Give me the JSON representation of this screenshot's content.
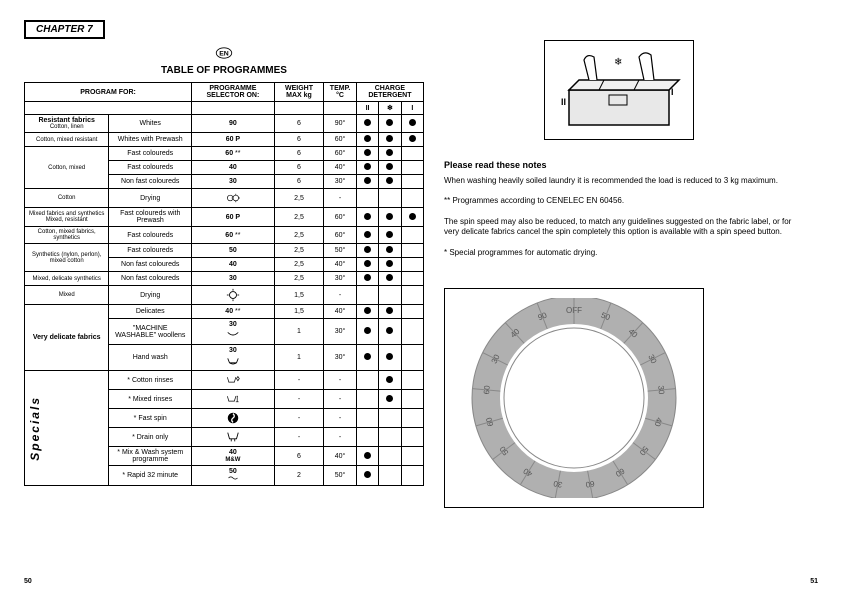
{
  "chapter": "CHAPTER 7",
  "title": "TABLE OF PROGRAMMES",
  "headers": {
    "program_for": "PROGRAM FOR:",
    "selector": "PROGRAMME SELECTOR ON:",
    "weight": "WEIGHT MAX kg",
    "temp": "TEMP. °C",
    "detergent": "CHARGE DETERGENT",
    "col_ii": "II",
    "col_snow": "❄",
    "col_i": "I"
  },
  "categories": {
    "resistant": "Resistant fabrics",
    "resistant_sub": "Cotton, linen",
    "cotton_mixed_res": "Cotton, mixed resistant",
    "cotton_mixed": "Cotton, mixed",
    "cotton": "Cotton",
    "mixed_res": "Mixed fabrics and synthetics Mixed, resistant",
    "cotton_mixed_syn": "Cotton, mixed fabrics, synthetics",
    "synthetics": "Synthetics (nylon, perlon), mixed cotton",
    "mixed_delicate": "Mixed, delicate synthetics",
    "mixed": "Mixed",
    "very_delicate": "Very delicate fabrics",
    "specials": "Specials"
  },
  "rows": [
    {
      "desc": "Whites",
      "sel": "90",
      "w": "6",
      "t": "90°",
      "d2": "●",
      "ds": "●",
      "d1": "●"
    },
    {
      "desc": "Whites with Prewash",
      "sel": "60 P",
      "w": "6",
      "t": "60°",
      "d2": "●",
      "ds": "●",
      "d1": "●"
    },
    {
      "desc": "Fast coloureds",
      "sel": "60",
      "note": "**",
      "w": "6",
      "t": "60°",
      "d2": "●",
      "ds": "●",
      "d1": ""
    },
    {
      "desc": "Fast coloureds",
      "sel": "40",
      "w": "6",
      "t": "40°",
      "d2": "●",
      "ds": "●",
      "d1": ""
    },
    {
      "desc": "Non fast coloureds",
      "sel": "30",
      "w": "6",
      "t": "30°",
      "d2": "●",
      "ds": "●",
      "d1": ""
    },
    {
      "desc": "Drying",
      "sel": "sym-sun",
      "w": "2,5",
      "t": "-",
      "d2": "",
      "ds": "",
      "d1": ""
    },
    {
      "desc": "Fast coloureds with Prewash",
      "sel": "60 P",
      "w": "2,5",
      "t": "60°",
      "d2": "●",
      "ds": "●",
      "d1": "●"
    },
    {
      "desc": "Fast coloureds",
      "sel": "60",
      "note": "**",
      "w": "2,5",
      "t": "60°",
      "d2": "●",
      "ds": "●",
      "d1": ""
    },
    {
      "desc": "Fast coloureds",
      "sel": "50",
      "w": "2,5",
      "t": "50°",
      "d2": "●",
      "ds": "●",
      "d1": ""
    },
    {
      "desc": "Non fast coloureds",
      "sel": "40",
      "w": "2,5",
      "t": "40°",
      "d2": "●",
      "ds": "●",
      "d1": ""
    },
    {
      "desc": "Non fast coloureds",
      "sel": "30",
      "w": "2,5",
      "t": "30°",
      "d2": "●",
      "ds": "●",
      "d1": ""
    },
    {
      "desc": "Drying",
      "sel": "sym-sun",
      "w": "1,5",
      "t": "-",
      "d2": "",
      "ds": "",
      "d1": ""
    },
    {
      "desc": "Delicates",
      "sel": "40",
      "note": "**",
      "w": "1,5",
      "t": "40°",
      "d2": "●",
      "ds": "●",
      "d1": ""
    },
    {
      "desc": "\"MACHINE WASHABLE\" woollens",
      "sel": "30 wool",
      "w": "1",
      "t": "30°",
      "d2": "●",
      "ds": "●",
      "d1": ""
    },
    {
      "desc": "Hand wash",
      "sel": "30 hand",
      "w": "1",
      "t": "30°",
      "d2": "●",
      "ds": "●",
      "d1": ""
    },
    {
      "desc": "Cotton rinses",
      "star": "*",
      "sel": "sym-rinse",
      "w": "-",
      "t": "-",
      "d2": "",
      "ds": "●",
      "d1": ""
    },
    {
      "desc": "Mixed rinses",
      "star": "*",
      "sel": "sym-rinse2",
      "w": "-",
      "t": "-",
      "d2": "",
      "ds": "●",
      "d1": ""
    },
    {
      "desc": "Fast spin",
      "star": "*",
      "sel": "sym-spin",
      "w": "-",
      "t": "-",
      "d2": "",
      "ds": "",
      "d1": ""
    },
    {
      "desc": "Drain only",
      "star": "*",
      "sel": "sym-drain",
      "w": "-",
      "t": "-",
      "d2": "",
      "ds": "",
      "d1": ""
    },
    {
      "desc": "Mix & Wash system programme",
      "star": "*",
      "sel": "40 MW",
      "w": "6",
      "t": "40°",
      "d2": "●",
      "ds": "",
      "d1": ""
    },
    {
      "desc": "Rapid 32 minute",
      "star": "*",
      "sel": "50 rapid",
      "w": "2",
      "t": "50°",
      "d2": "●",
      "ds": "",
      "d1": ""
    }
  ],
  "notes": {
    "title": "Please read these notes",
    "n1": "When washing heavily soiled laundry it is recommended the load is reduced to 3 kg maximum.",
    "n2": "** Programmes according to CENELEC EN 60456.",
    "n3": "The spin speed may also be reduced, to match any guidelines suggested on the fabric label, or for very delicate fabrics cancel the spin completely this option is available with a spin speed button.",
    "n4": "* Special programmes for automatic drying."
  },
  "page_left": "50",
  "page_right": "51",
  "dial_numbers": [
    "OFF",
    "50",
    "40",
    "30",
    "30",
    "40",
    "50",
    "60",
    "60",
    "30",
    "40",
    "50",
    "60",
    "60",
    "30",
    "40",
    "90"
  ],
  "colors": {
    "border": "#000000",
    "bg": "#ffffff",
    "dial_fill": "#d0d0d0"
  }
}
